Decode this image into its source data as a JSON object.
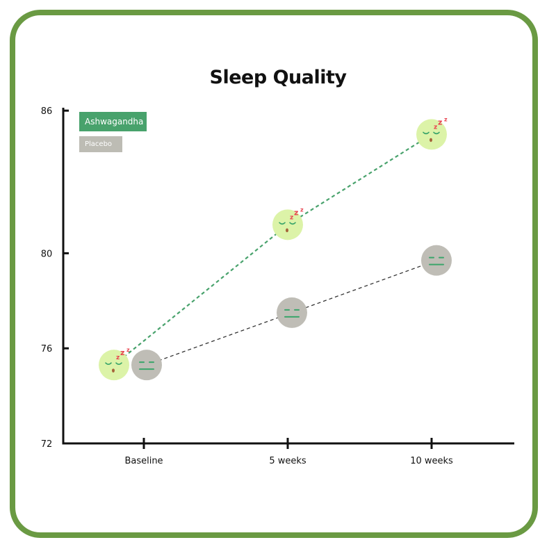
{
  "colors": {
    "frame": "#6a9a43",
    "ashwagandha": "#48a26c",
    "placebo": "#bdbcb4",
    "ashwagandha_face": "#dcf3a8",
    "placebo_face": "#bfbdb6",
    "face_features": "#3aa56a",
    "zzz": "#e8434f"
  },
  "chart_data": {
    "type": "line",
    "title": "Sleep Quality",
    "categories": [
      "Baseline",
      "5 weeks",
      "10 weeks"
    ],
    "ylim": [
      72,
      86
    ],
    "yticks": [
      72,
      76,
      80,
      86
    ],
    "series": [
      {
        "name": "Ashwagandha",
        "values": [
          75.3,
          81.2,
          85.0
        ],
        "line_style": "dashed",
        "marker": "sleeping-face-icon"
      },
      {
        "name": "Placebo",
        "values": [
          75.3,
          77.5,
          79.7
        ],
        "line_style": "dashed",
        "marker": "neutral-face-icon"
      }
    ],
    "legend": "top-left",
    "grid": false
  }
}
